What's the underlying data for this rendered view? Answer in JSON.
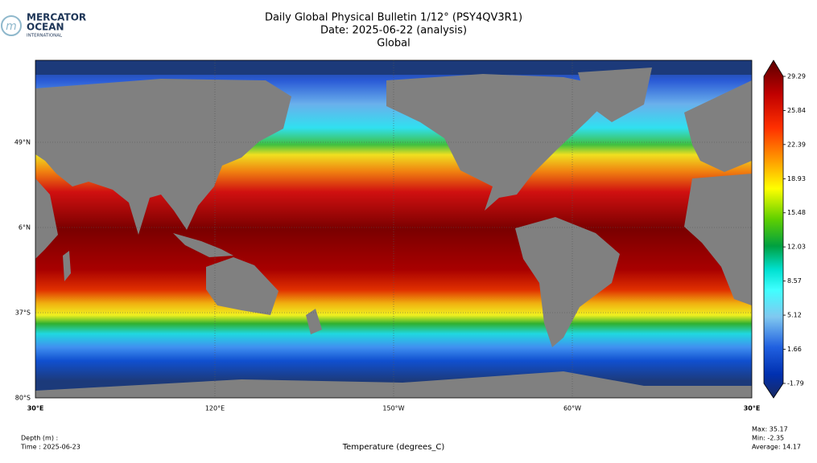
{
  "logo": {
    "line1": "MERCATOR",
    "line2": "OCEAN",
    "line3": "INTERNATIONAL"
  },
  "header": {
    "title": "Daily Global Physical Bulletin 1/12° (PSY4QV3R1)",
    "date": "Date: 2025-06-22 (analysis)",
    "region": "Global"
  },
  "map": {
    "lat_labels": [
      "49°N",
      "6°N",
      "37°S",
      "80°S"
    ],
    "lon_labels": [
      "30°E",
      "120°E",
      "150°W",
      "60°W",
      "30°E"
    ]
  },
  "colorbar": {
    "ticks": [
      -1.79,
      1.66,
      5.12,
      8.57,
      12.03,
      15.48,
      18.93,
      22.39,
      25.84,
      29.29
    ]
  },
  "footer": {
    "depth": "Depth (m) :",
    "time": "Time : 2025-06-23",
    "variable": "Temperature (degrees_C)",
    "max": "Max: 35.17",
    "min": "Min: -2.35",
    "average": "Average: 14.17"
  }
}
